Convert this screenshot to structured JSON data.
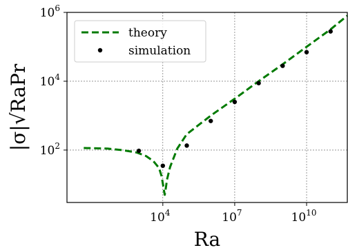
{
  "chart_data": {
    "type": "line",
    "title": "",
    "xlabel": "Ra",
    "ylabel": "|σ|√RaPr",
    "x_scale": "log",
    "y_scale": "log",
    "xlim": [
      1,
      500000000000.0
    ],
    "ylim": [
      3,
      1000000.0
    ],
    "grid": true,
    "legend_position": "top-left",
    "x_ticks": [
      {
        "value": 10000.0,
        "base": "10",
        "exp": "4"
      },
      {
        "value": 10000000.0,
        "base": "10",
        "exp": "7"
      },
      {
        "value": 10000000000.0,
        "base": "10",
        "exp": "10"
      }
    ],
    "y_ticks": [
      {
        "value": 100,
        "base": "10",
        "exp": "2"
      },
      {
        "value": 10000,
        "base": "10",
        "exp": "4"
      },
      {
        "value": 1000000,
        "base": "10",
        "exp": "6"
      }
    ],
    "series": [
      {
        "name": "theory",
        "style": "dashed-line",
        "color": "#007a00",
        "x": [
          5,
          50,
          200,
          800,
          2000,
          4000,
          7000,
          9000,
          11000,
          12000,
          13000,
          15000,
          20000,
          40000,
          100000,
          1000000,
          10000000,
          100000000,
          1000000000,
          10000000000,
          100000000000,
          500000000000
        ],
        "y": [
          115,
          110,
          100,
          85,
          67,
          48,
          30,
          17,
          7,
          5,
          7,
          14,
          32,
          110,
          290,
          1000,
          3100,
          10000,
          31000,
          100000,
          320000,
          800000
        ]
      },
      {
        "name": "simulation",
        "style": "markers",
        "color": "#000000",
        "x": [
          1000,
          10000,
          100000,
          1000000,
          10000000,
          100000000,
          1000000000,
          10000000000,
          100000000000
        ],
        "y": [
          95,
          35,
          135,
          700,
          2500,
          8800,
          28000,
          70000,
          280000
        ]
      }
    ]
  }
}
